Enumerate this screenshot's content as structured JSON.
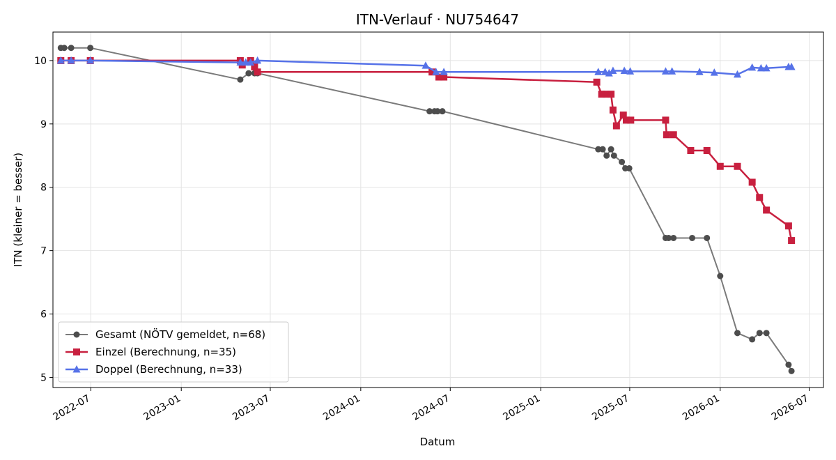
{
  "chart_data": {
    "type": "line",
    "title": "ITN-Verlauf · NU754647",
    "xlabel": "Datum",
    "ylabel": "ITN  (kleiner = besser)",
    "x_ticks": [
      "2022-07",
      "2023-01",
      "2023-07",
      "2024-01",
      "2024-07",
      "2025-01",
      "2025-07",
      "2026-01",
      "2026-07"
    ],
    "y_ticks": [
      "5",
      "6",
      "7",
      "8",
      "9",
      "10"
    ],
    "xlim": [
      "2022-04-15",
      "2026-07-30"
    ],
    "ylim": [
      4.84,
      10.45
    ],
    "grid": true,
    "legend_position": "lower-left",
    "series": [
      {
        "name": "Gesamt (NÖTV gemeldet, n=68)",
        "color": "#4d4d4d",
        "marker": "circle",
        "points": [
          [
            "2022-05-01",
            10.2
          ],
          [
            "2022-05-08",
            10.2
          ],
          [
            "2022-05-22",
            10.2
          ],
          [
            "2022-06-30",
            10.2
          ],
          [
            "2023-05-01",
            9.7
          ],
          [
            "2023-05-18",
            9.8
          ],
          [
            "2023-05-30",
            9.8
          ],
          [
            "2023-06-05",
            9.8
          ],
          [
            "2024-05-20",
            9.2
          ],
          [
            "2024-05-30",
            9.2
          ],
          [
            "2024-06-05",
            9.2
          ],
          [
            "2024-06-15",
            9.2
          ],
          [
            "2025-04-28",
            8.6
          ],
          [
            "2025-05-07",
            8.6
          ],
          [
            "2025-05-15",
            8.5
          ],
          [
            "2025-05-24",
            8.6
          ],
          [
            "2025-05-30",
            8.5
          ],
          [
            "2025-06-15",
            8.4
          ],
          [
            "2025-06-22",
            8.3
          ],
          [
            "2025-06-30",
            8.3
          ],
          [
            "2025-09-12",
            7.2
          ],
          [
            "2025-09-18",
            7.2
          ],
          [
            "2025-09-28",
            7.2
          ],
          [
            "2025-11-05",
            7.2
          ],
          [
            "2025-12-05",
            7.2
          ],
          [
            "2026-01-01",
            6.6
          ],
          [
            "2026-02-05",
            5.7
          ],
          [
            "2026-03-07",
            5.6
          ],
          [
            "2026-03-22",
            5.7
          ],
          [
            "2026-04-05",
            5.7
          ],
          [
            "2026-05-20",
            5.2
          ],
          [
            "2026-05-26",
            5.1
          ]
        ]
      },
      {
        "name": "Einzel (Berechnung, n=35)",
        "color": "#c8203f",
        "marker": "square",
        "points": [
          [
            "2022-05-01",
            10.0
          ],
          [
            "2022-05-22",
            10.0
          ],
          [
            "2022-06-30",
            10.0
          ],
          [
            "2023-05-01",
            10.0
          ],
          [
            "2023-05-05",
            9.93
          ],
          [
            "2023-05-22",
            10.0
          ],
          [
            "2023-05-30",
            9.9
          ],
          [
            "2023-06-05",
            9.82
          ],
          [
            "2024-05-25",
            9.82
          ],
          [
            "2024-06-08",
            9.74
          ],
          [
            "2024-06-18",
            9.74
          ],
          [
            "2025-04-25",
            9.66
          ],
          [
            "2025-05-05",
            9.47
          ],
          [
            "2025-05-14",
            9.47
          ],
          [
            "2025-05-24",
            9.47
          ],
          [
            "2025-05-28",
            9.22
          ],
          [
            "2025-06-04",
            8.97
          ],
          [
            "2025-06-18",
            9.14
          ],
          [
            "2025-06-24",
            9.06
          ],
          [
            "2025-07-03",
            9.06
          ],
          [
            "2025-09-12",
            9.06
          ],
          [
            "2025-09-14",
            8.83
          ],
          [
            "2025-09-28",
            8.83
          ],
          [
            "2025-11-02",
            8.58
          ],
          [
            "2025-12-05",
            8.58
          ],
          [
            "2026-01-01",
            8.33
          ],
          [
            "2026-02-05",
            8.33
          ],
          [
            "2026-03-07",
            8.08
          ],
          [
            "2026-03-22",
            7.84
          ],
          [
            "2026-04-05",
            7.64
          ],
          [
            "2026-05-20",
            7.39
          ],
          [
            "2026-05-26",
            7.16
          ]
        ]
      },
      {
        "name": "Doppel (Berechnung, n=33)",
        "color": "#5672e8",
        "marker": "triangle",
        "points": [
          [
            "2022-05-01",
            10.0
          ],
          [
            "2022-05-22",
            10.0
          ],
          [
            "2022-06-30",
            10.0
          ],
          [
            "2023-05-01",
            9.97
          ],
          [
            "2023-05-12",
            9.97
          ],
          [
            "2023-05-22",
            9.97
          ],
          [
            "2023-06-05",
            10.0
          ],
          [
            "2024-05-12",
            9.92
          ],
          [
            "2024-06-02",
            9.82
          ],
          [
            "2024-06-18",
            9.82
          ],
          [
            "2025-04-28",
            9.82
          ],
          [
            "2025-05-12",
            9.82
          ],
          [
            "2025-05-20",
            9.8
          ],
          [
            "2025-05-28",
            9.84
          ],
          [
            "2025-06-20",
            9.84
          ],
          [
            "2025-07-02",
            9.83
          ],
          [
            "2025-09-12",
            9.83
          ],
          [
            "2025-09-25",
            9.83
          ],
          [
            "2025-11-20",
            9.82
          ],
          [
            "2025-12-20",
            9.81
          ],
          [
            "2026-02-05",
            9.78
          ],
          [
            "2026-03-07",
            9.89
          ],
          [
            "2026-03-25",
            9.88
          ],
          [
            "2026-04-05",
            9.88
          ],
          [
            "2026-05-20",
            9.9
          ],
          [
            "2026-05-26",
            9.9
          ]
        ]
      }
    ]
  }
}
